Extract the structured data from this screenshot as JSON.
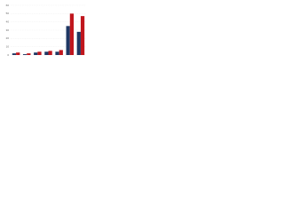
{
  "chart_data": {
    "type": "bar",
    "categories": [
      null,
      null,
      null,
      null,
      null,
      null,
      null
    ],
    "series": [
      {
        "color": "#1f3864",
        "values": [
          2,
          1,
          3,
          4,
          4,
          35,
          28
        ]
      },
      {
        "color": "#c0161d",
        "values": [
          3,
          2,
          4,
          5,
          6,
          50,
          47
        ]
      }
    ],
    "ylim": [
      0,
      60
    ],
    "yticks": [
      0,
      10,
      20,
      30,
      40,
      50,
      60
    ],
    "grid": true
  }
}
